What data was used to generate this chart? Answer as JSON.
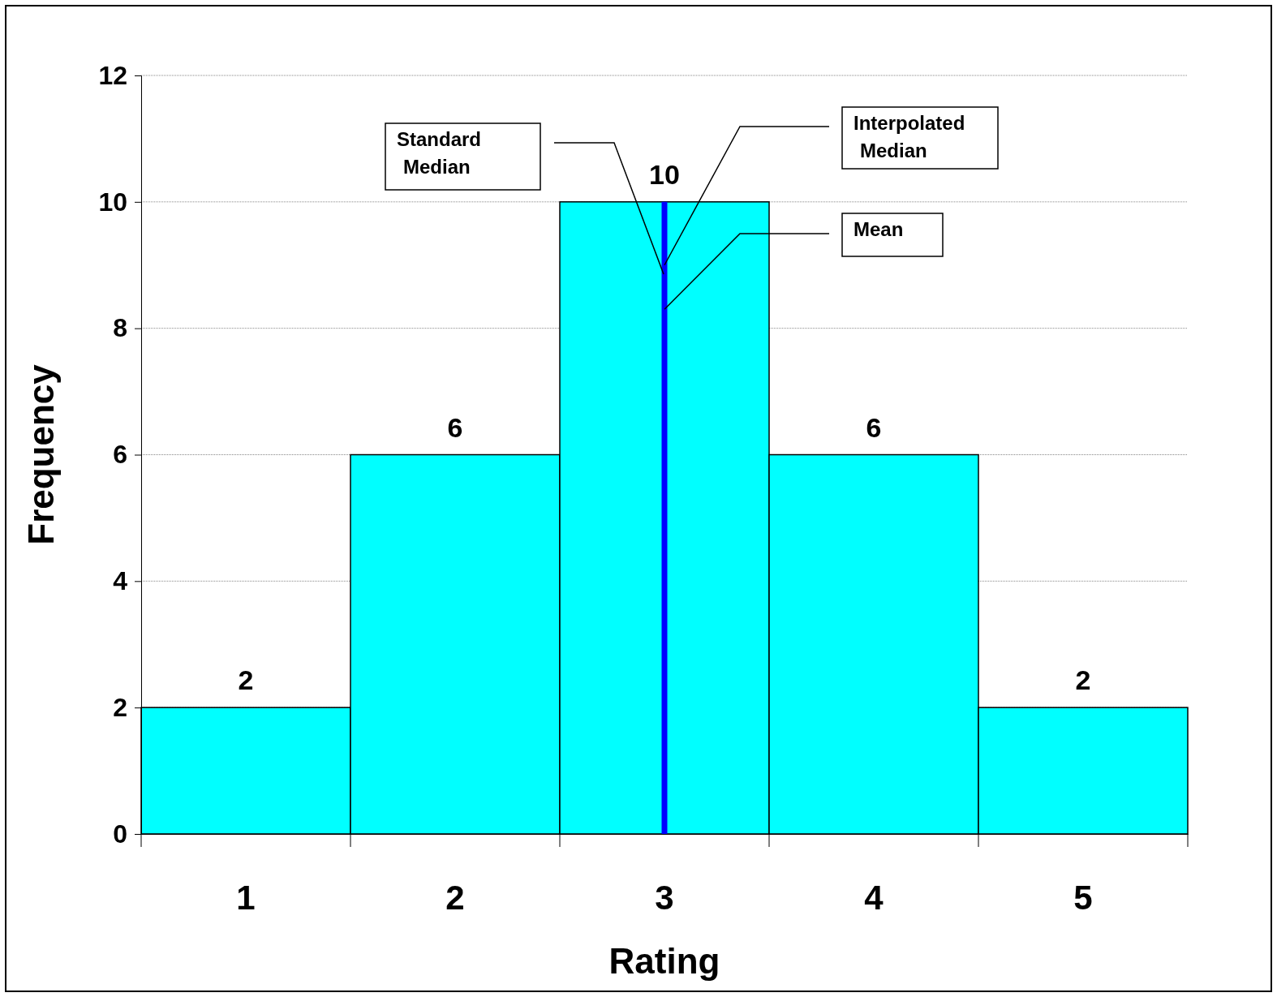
{
  "chart_data": {
    "type": "bar",
    "xlabel": "Rating",
    "ylabel": "Frequency",
    "categories": [
      "1",
      "2",
      "3",
      "4",
      "5"
    ],
    "values": [
      2,
      6,
      10,
      6,
      2
    ],
    "color": "#00ffff",
    "ylim": [
      0,
      12
    ],
    "yticks": [
      0,
      2,
      4,
      6,
      8,
      10,
      12
    ],
    "grid": "y",
    "data_labels": true,
    "ref_lines": [
      {
        "axis": "x",
        "value": "3",
        "color": "#0000ff"
      }
    ],
    "annotations": [
      "Standard Median",
      {
        "text": "Interpolated Median",
        "x": "3",
        "y": 9
      },
      {
        "text": "Mean",
        "x": "3",
        "y": 8.3
      }
    ]
  }
}
